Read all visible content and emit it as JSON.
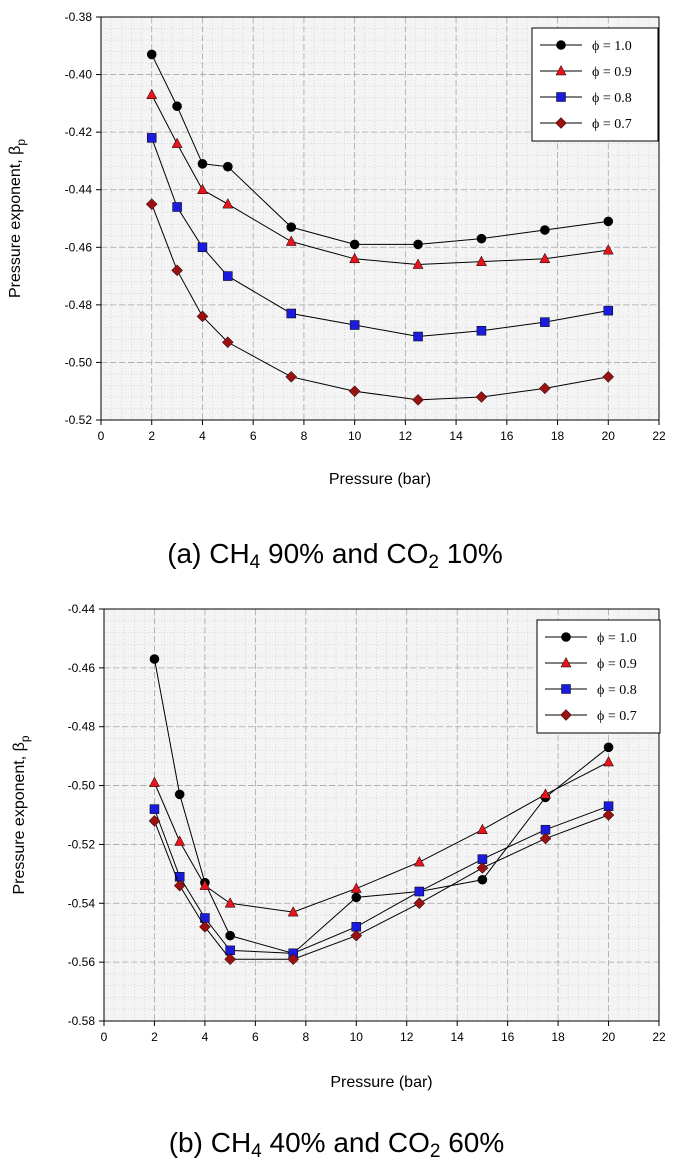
{
  "chart_data": [
    {
      "type": "line",
      "panel_id": "a",
      "caption": {
        "label": "(a) CH",
        "sub1": "4",
        "mid": " 90% and CO",
        "sub2": "2",
        "tail": " 10%"
      },
      "xlabel": "Pressure (bar)",
      "ylabel": "Pressure exponent, β",
      "ylabel_sub": "p",
      "xlim": [
        0,
        22
      ],
      "ylim": [
        -0.52,
        -0.38
      ],
      "x_ticks": [
        0,
        2,
        4,
        6,
        8,
        10,
        12,
        14,
        16,
        18,
        20,
        22
      ],
      "y_ticks": [
        -0.38,
        -0.4,
        -0.42,
        -0.44,
        -0.46,
        -0.48,
        -0.5,
        -0.52
      ],
      "x": [
        2,
        3,
        4,
        5,
        7.5,
        10,
        12.5,
        15,
        17.5,
        20
      ],
      "series": [
        {
          "name": "ϕ = 1.0",
          "marker": "circle",
          "color": "#000000",
          "values": [
            -0.393,
            -0.411,
            -0.431,
            -0.432,
            -0.453,
            -0.459,
            -0.459,
            -0.457,
            -0.454,
            -0.451
          ]
        },
        {
          "name": "ϕ = 0.9",
          "marker": "triangle",
          "color": "#e8141b",
          "values": [
            -0.407,
            -0.424,
            -0.44,
            -0.445,
            -0.458,
            -0.464,
            -0.466,
            -0.465,
            -0.464,
            -0.461
          ]
        },
        {
          "name": "ϕ = 0.8",
          "marker": "square",
          "color": "#1b1bdc",
          "values": [
            -0.422,
            -0.446,
            -0.46,
            -0.47,
            -0.483,
            -0.487,
            -0.491,
            -0.489,
            -0.486,
            -0.482
          ]
        },
        {
          "name": "ϕ = 0.7",
          "marker": "diamond",
          "color": "#991111",
          "values": [
            -0.445,
            -0.468,
            -0.484,
            -0.493,
            -0.505,
            -0.51,
            -0.513,
            -0.512,
            -0.509,
            -0.505
          ]
        }
      ]
    },
    {
      "type": "line",
      "panel_id": "b",
      "caption": {
        "label": "(b) CH",
        "sub1": "4",
        "mid": " 40% and CO",
        "sub2": "2",
        "tail": " 60%"
      },
      "xlabel": "Pressure (bar)",
      "ylabel": "Pressure exponent, β",
      "ylabel_sub": "p",
      "xlim": [
        0,
        22
      ],
      "ylim": [
        -0.58,
        -0.44
      ],
      "x_ticks": [
        0,
        2,
        4,
        6,
        8,
        10,
        12,
        14,
        16,
        18,
        20,
        22
      ],
      "y_ticks": [
        -0.44,
        -0.46,
        -0.48,
        -0.5,
        -0.52,
        -0.54,
        -0.56,
        -0.58
      ],
      "x": [
        2,
        3,
        4,
        5,
        7.5,
        10,
        12.5,
        15,
        17.5,
        20
      ],
      "series": [
        {
          "name": "ϕ = 1.0",
          "marker": "circle",
          "color": "#000000",
          "values": [
            -0.457,
            -0.503,
            -0.533,
            -0.551,
            -0.557,
            -0.538,
            -0.536,
            -0.532,
            -0.504,
            -0.487
          ]
        },
        {
          "name": "ϕ = 0.9",
          "marker": "triangle",
          "color": "#e8141b",
          "values": [
            -0.499,
            -0.519,
            -0.534,
            -0.54,
            -0.543,
            -0.535,
            -0.526,
            -0.515,
            -0.503,
            -0.492
          ]
        },
        {
          "name": "ϕ = 0.8",
          "marker": "square",
          "color": "#1b1bdc",
          "values": [
            -0.508,
            -0.531,
            -0.545,
            -0.556,
            -0.557,
            -0.548,
            -0.536,
            -0.525,
            -0.515,
            -0.507
          ]
        },
        {
          "name": "ϕ = 0.7",
          "marker": "diamond",
          "color": "#991111",
          "values": [
            -0.512,
            -0.534,
            -0.548,
            -0.559,
            -0.559,
            -0.551,
            -0.54,
            -0.528,
            -0.518,
            -0.51
          ]
        }
      ]
    }
  ]
}
